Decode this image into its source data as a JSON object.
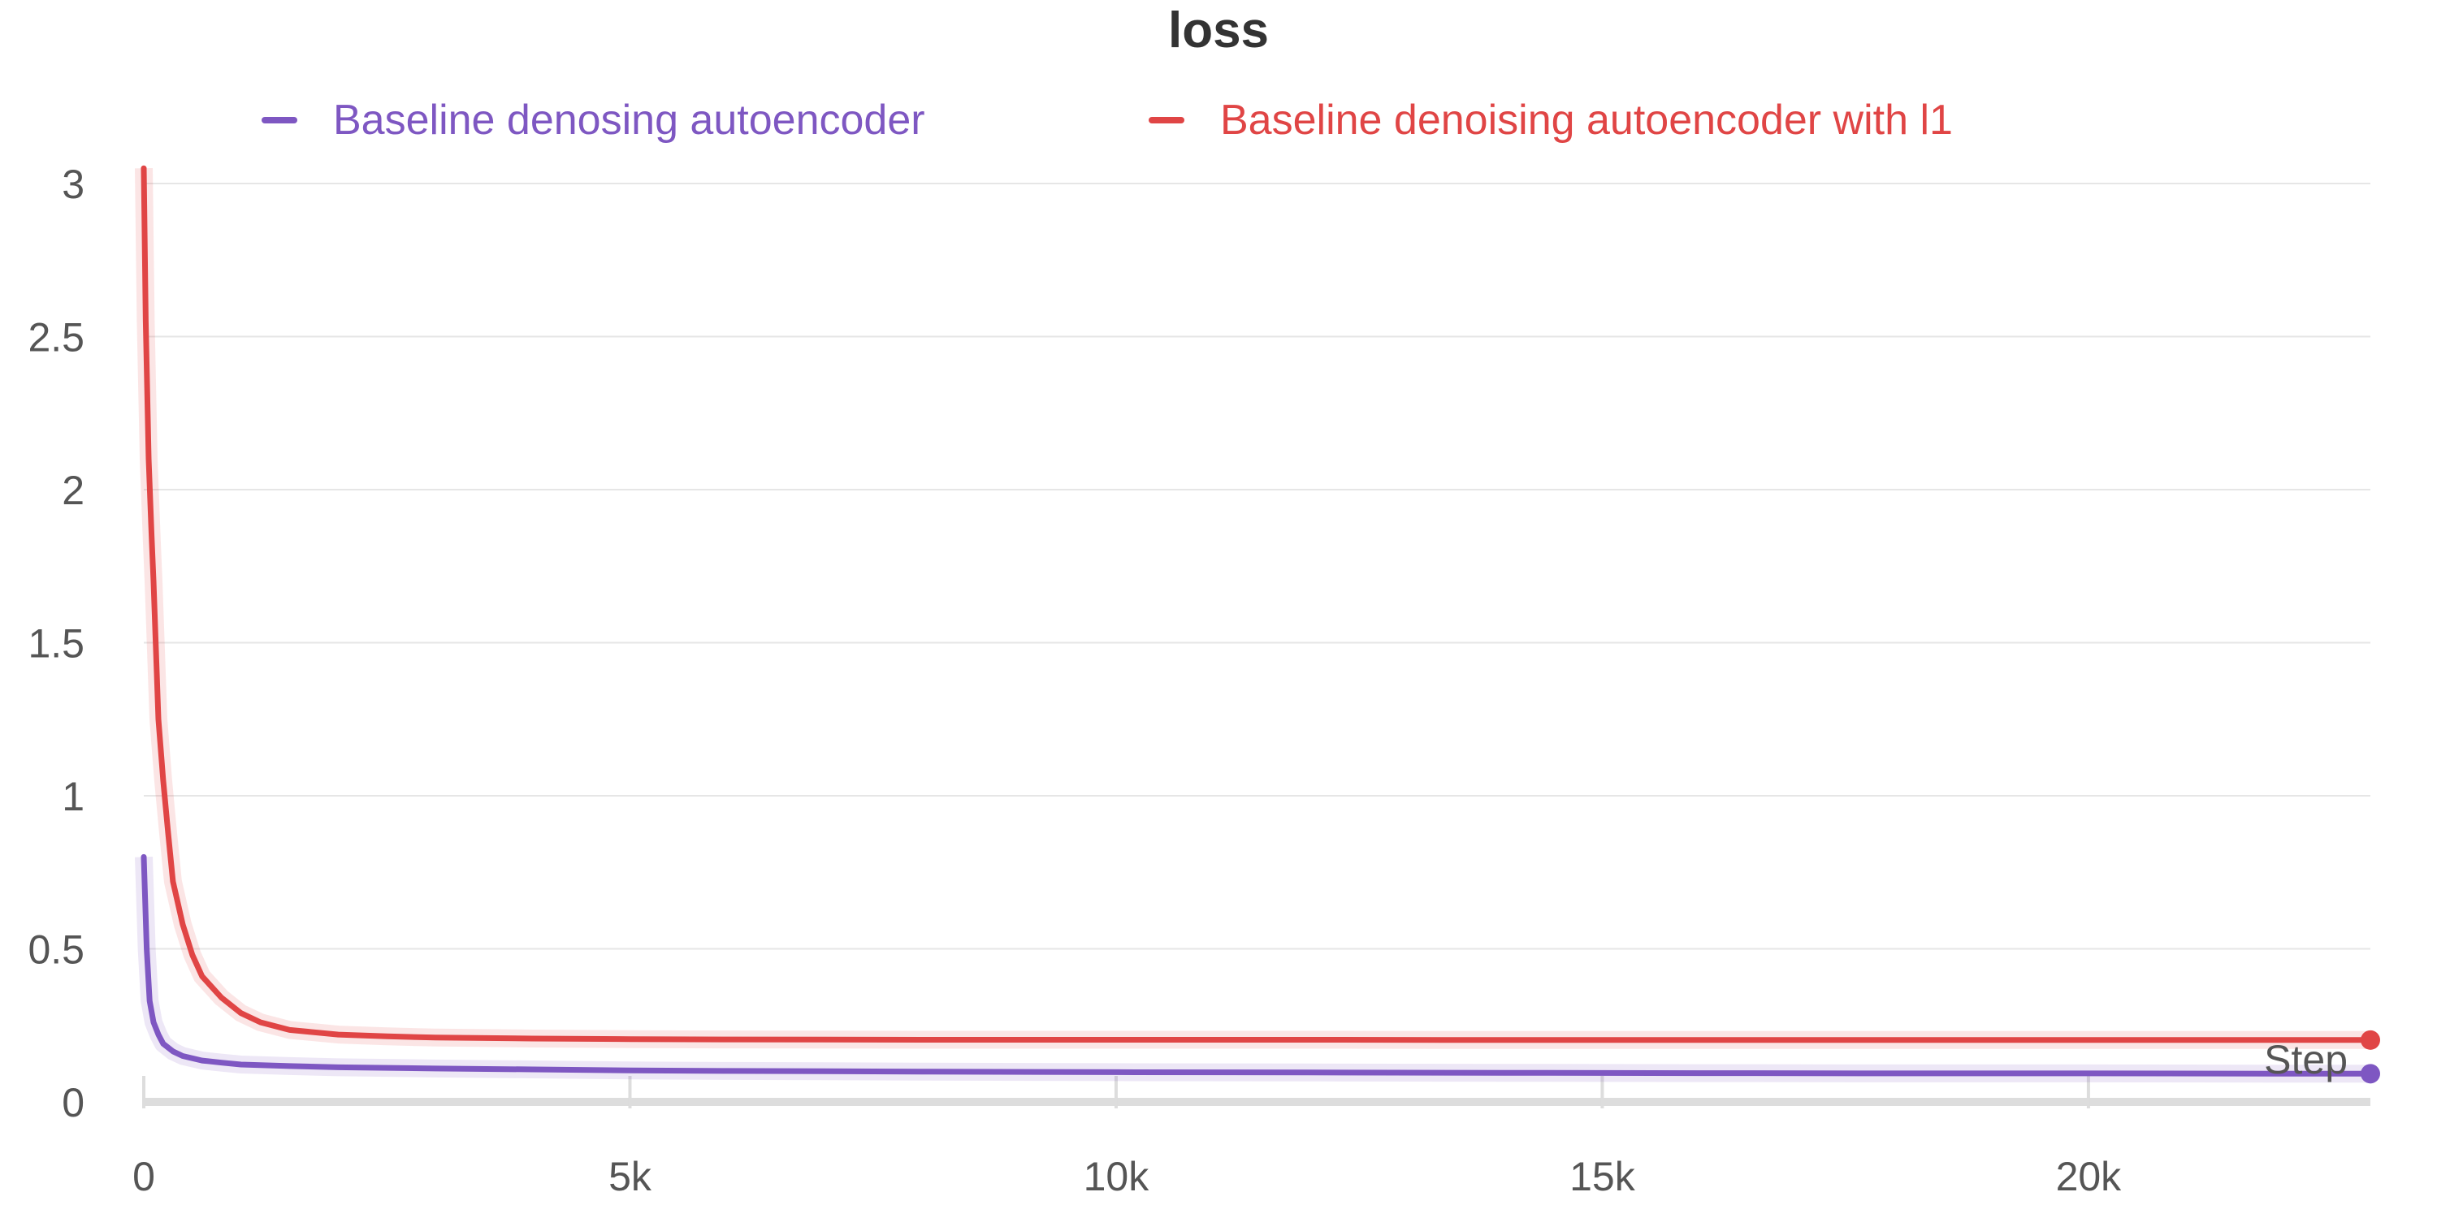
{
  "chart_data": {
    "type": "line",
    "title": "loss",
    "xlabel": "Step",
    "ylabel": "",
    "xlim": [
      0,
      22900
    ],
    "ylim": [
      0,
      3
    ],
    "x_ticks": [
      0,
      5000,
      10000,
      15000,
      20000
    ],
    "x_tick_labels": [
      "0",
      "5k",
      "10k",
      "15k",
      "20k"
    ],
    "y_ticks": [
      0,
      0.5,
      1,
      1.5,
      2,
      2.5,
      3
    ],
    "y_tick_labels": [
      "0",
      "0.5",
      "1",
      "1.5",
      "2",
      "2.5",
      "3"
    ],
    "grid": true,
    "legend": "top",
    "series": [
      {
        "name": "Baseline denosing autoencoder",
        "color": "#7e57c2",
        "x": [
          0,
          30,
          60,
          100,
          150,
          200,
          300,
          400,
          600,
          800,
          1000,
          1500,
          2000,
          3000,
          4000,
          5000,
          6000,
          8000,
          10000,
          12000,
          14000,
          16000,
          18000,
          20000,
          22000,
          22900
        ],
        "y": [
          0.8,
          0.5,
          0.33,
          0.26,
          0.22,
          0.19,
          0.165,
          0.15,
          0.135,
          0.128,
          0.122,
          0.117,
          0.113,
          0.109,
          0.106,
          0.103,
          0.101,
          0.099,
          0.097,
          0.096,
          0.095,
          0.094,
          0.093,
          0.093,
          0.092,
          0.092
        ]
      },
      {
        "name": "Baseline denoising autoencoder with l1",
        "color": "#e04545",
        "x": [
          0,
          20,
          50,
          80,
          100,
          150,
          200,
          250,
          300,
          400,
          500,
          600,
          800,
          1000,
          1200,
          1500,
          2000,
          2500,
          3000,
          4000,
          5000,
          6000,
          8000,
          10000,
          12000,
          14000,
          16000,
          18000,
          20000,
          22000,
          22900
        ],
        "y": [
          3.05,
          2.55,
          2.1,
          1.85,
          1.7,
          1.25,
          1.05,
          0.88,
          0.72,
          0.58,
          0.48,
          0.41,
          0.34,
          0.29,
          0.26,
          0.235,
          0.22,
          0.214,
          0.21,
          0.207,
          0.205,
          0.204,
          0.203,
          0.203,
          0.203,
          0.202,
          0.202,
          0.202,
          0.202,
          0.202,
          0.202
        ]
      }
    ]
  }
}
